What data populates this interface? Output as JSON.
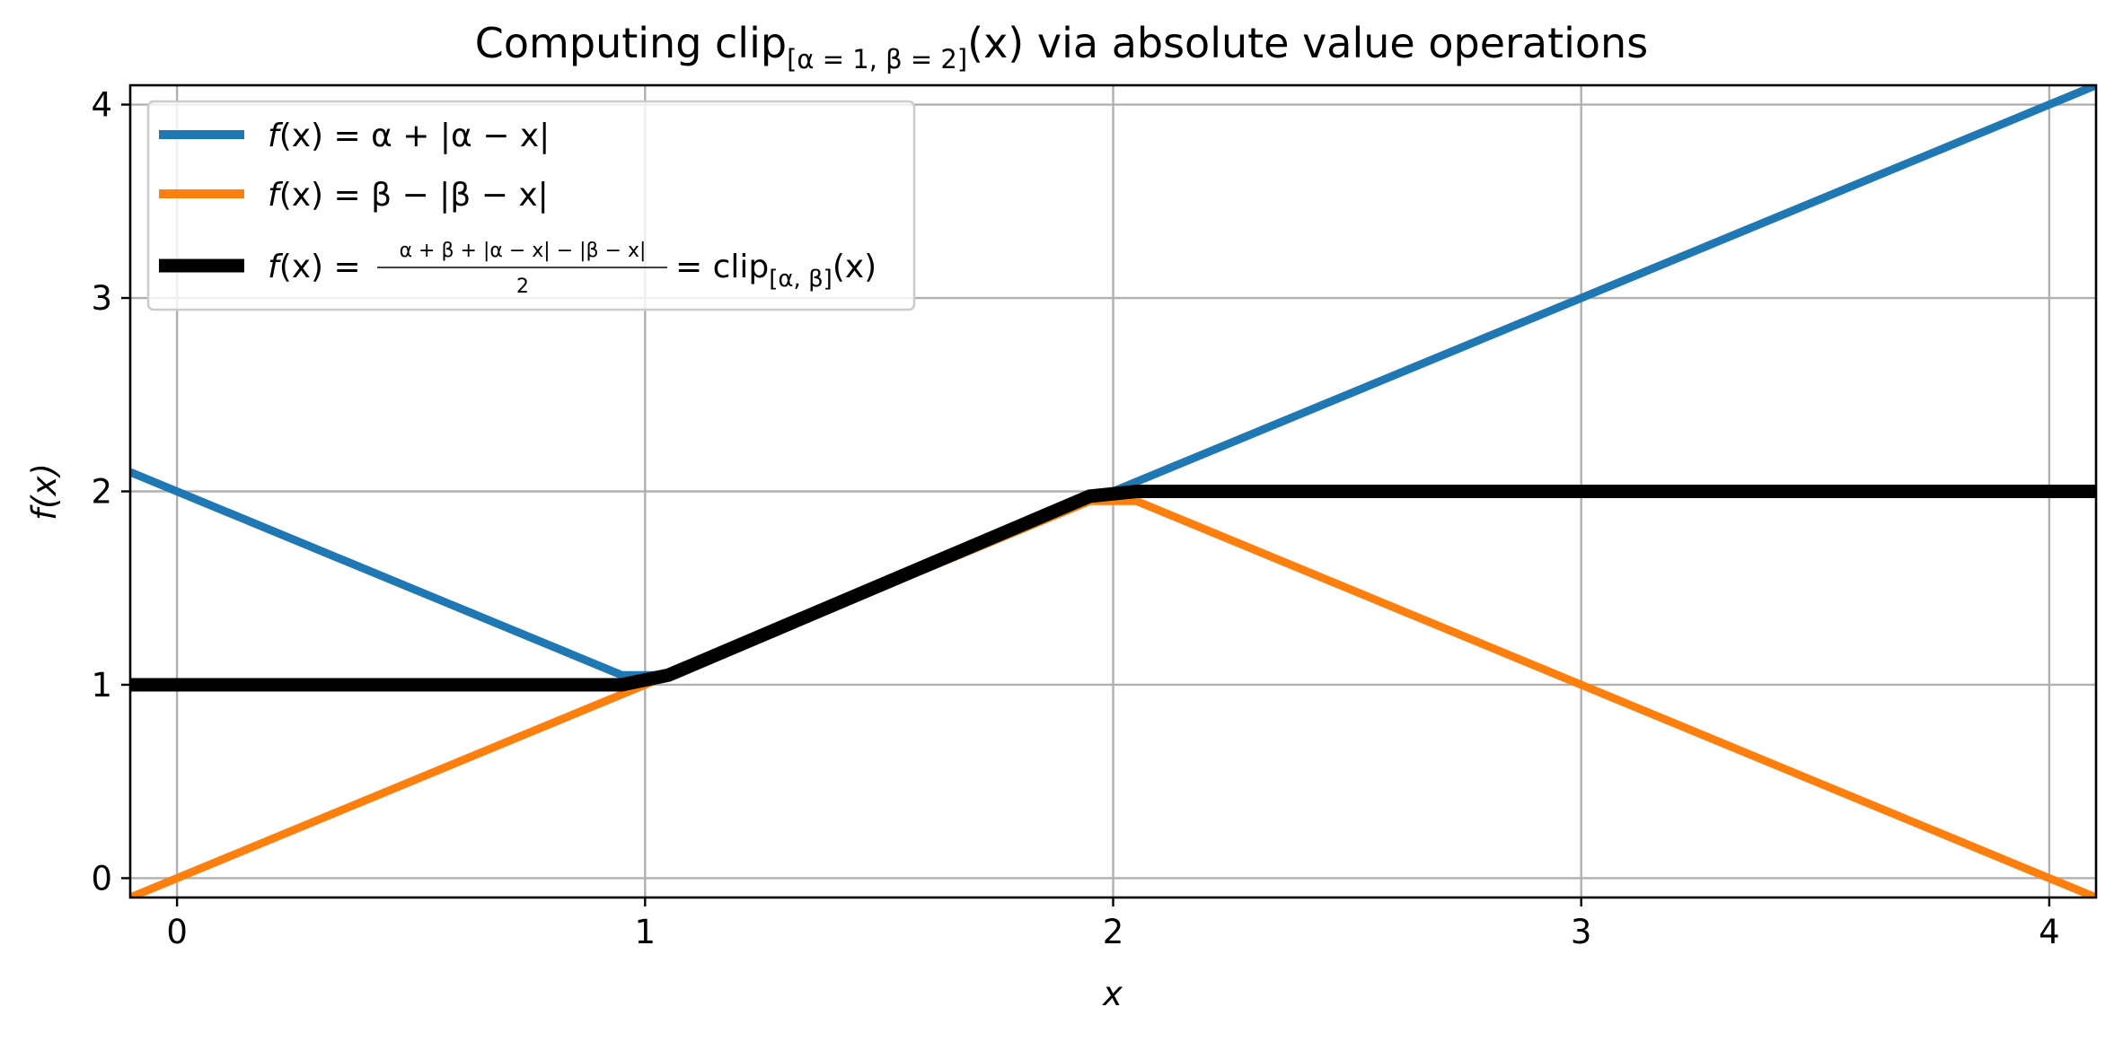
{
  "chart_data": {
    "type": "line",
    "title": {
      "main": "Computing clip",
      "subscript": "[α = 1, β = 2]",
      "suffix": "(x) via absolute value operations"
    },
    "xlabel": "x",
    "ylabel": "f(x)",
    "xlim": [
      -0.1,
      4.1
    ],
    "ylim": [
      -0.1,
      4.1
    ],
    "xticks": [
      0,
      1,
      2,
      3,
      4
    ],
    "yticks": [
      0,
      1,
      2,
      3,
      4
    ],
    "grid": true,
    "legend_position": "top-left",
    "parameters": {
      "alpha": 1,
      "beta": 2
    },
    "series": [
      {
        "name": "f(x) = α + |α − x|",
        "color": "#1f77b4",
        "x": [
          -0.1,
          0.95,
          1.05,
          4.1
        ],
        "y": [
          2.1,
          1.05,
          1.05,
          4.1
        ]
      },
      {
        "name": "f(x) = β − |β − x|",
        "color": "#ff7f0e",
        "x": [
          -0.1,
          1.95,
          2.05,
          4.1
        ],
        "y": [
          -0.1,
          1.95,
          1.95,
          -0.1
        ]
      },
      {
        "name": "f(x) = (α + β + |α − x| − |β − x|)/2 = clip[α, β](x)",
        "color": "#000000",
        "x": [
          -0.1,
          0.95,
          1.05,
          1.95,
          2.05,
          4.1
        ],
        "y": [
          1.0,
          1.0,
          1.05,
          1.975,
          2.0,
          2.0
        ]
      }
    ],
    "legend": {
      "entry1": {
        "f": "f",
        "x": "(x) = α + |α − x|"
      },
      "entry2": {
        "f": "f",
        "x": "(x) = β − |β − x|"
      },
      "entry3": {
        "lhs": "(x) =",
        "numerator": "α + β + |α − x| − |β − x|",
        "denominator": "2",
        "rhs": "= clip",
        "rhs_sub": "[α, β]",
        "rhs_end": "(x)"
      }
    }
  }
}
